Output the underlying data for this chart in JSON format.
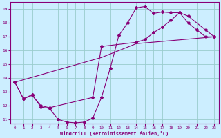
{
  "xlabel": "Windchill (Refroidissement éolien,°C)",
  "background_color": "#cceeff",
  "grid_color": "#99cccc",
  "line_color": "#880077",
  "xlim": [
    -0.5,
    23.5
  ],
  "ylim": [
    10.7,
    19.5
  ],
  "yticks": [
    11,
    12,
    13,
    14,
    15,
    16,
    17,
    18,
    19
  ],
  "xticks": [
    0,
    1,
    2,
    3,
    4,
    5,
    6,
    7,
    8,
    9,
    10,
    11,
    12,
    13,
    14,
    15,
    16,
    17,
    18,
    19,
    20,
    21,
    22,
    23
  ],
  "series1_x": [
    0,
    1,
    2,
    3,
    4,
    5,
    6,
    7,
    8,
    9,
    10,
    11,
    12,
    13,
    14,
    15,
    16,
    17,
    18,
    19,
    20,
    21,
    22,
    23
  ],
  "series1_y": [
    13.7,
    12.5,
    12.8,
    11.9,
    11.8,
    11.0,
    10.8,
    10.75,
    10.8,
    11.1,
    12.6,
    14.7,
    17.1,
    18.0,
    19.1,
    19.2,
    18.7,
    18.8,
    18.75,
    18.75,
    18.0,
    17.5,
    17.0,
    17.0
  ],
  "series2_x": [
    0,
    1,
    2,
    3,
    4,
    9,
    10,
    14,
    15,
    16,
    17,
    18,
    19,
    20,
    22,
    23
  ],
  "series2_y": [
    13.7,
    12.5,
    12.75,
    12.0,
    11.85,
    12.6,
    16.3,
    16.6,
    16.8,
    17.3,
    17.7,
    18.2,
    18.75,
    18.5,
    17.5,
    17.0
  ],
  "series3_x": [
    0,
    10,
    14,
    23
  ],
  "series3_y": [
    13.7,
    15.5,
    16.5,
    17.0
  ]
}
